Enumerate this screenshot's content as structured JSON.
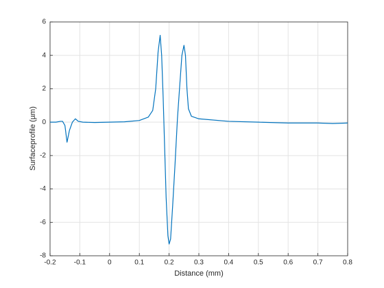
{
  "chart_data": {
    "type": "line",
    "x_label": "Distance (mm)",
    "y_label": "Surfaceprofile (µm)",
    "x": [
      -0.2,
      -0.18,
      -0.165,
      -0.158,
      -0.15,
      -0.143,
      -0.135,
      -0.125,
      -0.115,
      -0.105,
      -0.09,
      -0.05,
      0,
      0.05,
      0.1,
      0.13,
      0.145,
      0.155,
      0.163,
      0.17,
      0.175,
      0.18,
      0.185,
      0.19,
      0.196,
      0.2,
      0.205,
      0.212,
      0.22,
      0.228,
      0.235,
      0.243,
      0.25,
      0.255,
      0.26,
      0.265,
      0.275,
      0.3,
      0.4,
      0.5,
      0.6,
      0.7,
      0.75,
      0.8
    ],
    "series": [
      {
        "color": "#0072bd",
        "values": [
          0,
          0,
          0.05,
          0.05,
          -0.2,
          -1.2,
          -0.5,
          0,
          0.2,
          0.05,
          0,
          -0.02,
          0,
          0.02,
          0.1,
          0.3,
          0.7,
          2.0,
          4.2,
          5.2,
          4.0,
          1.5,
          -1.5,
          -4.5,
          -6.8,
          -7.3,
          -7.0,
          -5.0,
          -2.5,
          0.2,
          2.0,
          4.0,
          4.6,
          4.0,
          2.0,
          0.8,
          0.35,
          0.2,
          0.05,
          0,
          -0.05,
          -0.05,
          -0.08,
          -0.05
        ]
      }
    ],
    "xlim": [
      -0.2,
      0.8
    ],
    "xticks": [
      -0.2,
      -0.1,
      0,
      0.1,
      0.2,
      0.3,
      0.4,
      0.5,
      0.6,
      0.7,
      0.8
    ],
    "ylim": [
      -8,
      6
    ],
    "yticks": [
      -8,
      -6,
      -4,
      -2,
      0,
      2,
      4,
      6
    ],
    "grid": true
  }
}
